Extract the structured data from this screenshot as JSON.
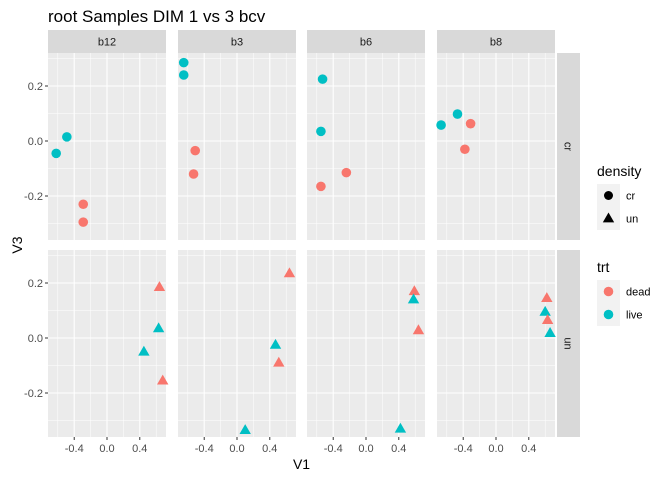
{
  "chart_data": {
    "type": "scatter",
    "title": "root Samples DIM 1 vs 3 bcv",
    "xlabel": "V1",
    "ylabel": "V3",
    "xlim": [
      -0.72,
      0.72
    ],
    "ylim": [
      -0.36,
      0.32
    ],
    "x_ticks": [
      -0.4,
      0.0,
      0.4
    ],
    "x_tick_labels": [
      "-0.4",
      "0.0",
      "0.4"
    ],
    "y_ticks": [
      -0.2,
      0.0,
      0.2
    ],
    "y_tick_labels": [
      "-0.2",
      "0.0",
      "0.2"
    ],
    "facet_columns": [
      "b12",
      "b3",
      "b6",
      "b8"
    ],
    "facet_rows": [
      "cr",
      "un"
    ],
    "grid": true,
    "colors": {
      "dead": "#F8766D",
      "live": "#00BFC4"
    },
    "legends": [
      {
        "title": "density",
        "placement": "right",
        "entries": [
          {
            "label": "cr",
            "shape": "circle"
          },
          {
            "label": "un",
            "shape": "triangle"
          }
        ]
      },
      {
        "title": "trt",
        "placement": "right",
        "entries": [
          {
            "label": "dead",
            "color": "dead"
          },
          {
            "label": "live",
            "color": "live"
          }
        ]
      }
    ],
    "points": [
      {
        "col": "b12",
        "row": "cr",
        "trt": "live",
        "x": -0.49,
        "y": 0.015
      },
      {
        "col": "b12",
        "row": "cr",
        "trt": "live",
        "x": -0.62,
        "y": -0.045
      },
      {
        "col": "b12",
        "row": "cr",
        "trt": "dead",
        "x": -0.29,
        "y": -0.23
      },
      {
        "col": "b12",
        "row": "cr",
        "trt": "dead",
        "x": -0.29,
        "y": -0.295
      },
      {
        "col": "b3",
        "row": "cr",
        "trt": "live",
        "x": -0.65,
        "y": 0.285
      },
      {
        "col": "b3",
        "row": "cr",
        "trt": "live",
        "x": -0.65,
        "y": 0.24
      },
      {
        "col": "b3",
        "row": "cr",
        "trt": "dead",
        "x": -0.51,
        "y": -0.035
      },
      {
        "col": "b3",
        "row": "cr",
        "trt": "dead",
        "x": -0.53,
        "y": -0.12
      },
      {
        "col": "b6",
        "row": "cr",
        "trt": "live",
        "x": -0.53,
        "y": 0.225
      },
      {
        "col": "b6",
        "row": "cr",
        "trt": "live",
        "x": -0.55,
        "y": 0.035
      },
      {
        "col": "b6",
        "row": "cr",
        "trt": "dead",
        "x": -0.24,
        "y": -0.115
      },
      {
        "col": "b6",
        "row": "cr",
        "trt": "dead",
        "x": -0.55,
        "y": -0.165
      },
      {
        "col": "b8",
        "row": "cr",
        "trt": "live",
        "x": -0.67,
        "y": 0.058
      },
      {
        "col": "b8",
        "row": "cr",
        "trt": "live",
        "x": -0.47,
        "y": 0.098
      },
      {
        "col": "b8",
        "row": "cr",
        "trt": "dead",
        "x": -0.31,
        "y": 0.063
      },
      {
        "col": "b8",
        "row": "cr",
        "trt": "dead",
        "x": -0.38,
        "y": -0.03
      },
      {
        "col": "b12",
        "row": "un",
        "trt": "dead",
        "x": 0.64,
        "y": 0.185
      },
      {
        "col": "b12",
        "row": "un",
        "trt": "live",
        "x": 0.63,
        "y": 0.035
      },
      {
        "col": "b12",
        "row": "un",
        "trt": "live",
        "x": 0.45,
        "y": -0.05
      },
      {
        "col": "b12",
        "row": "un",
        "trt": "dead",
        "x": 0.68,
        "y": -0.155
      },
      {
        "col": "b3",
        "row": "un",
        "trt": "dead",
        "x": 0.64,
        "y": 0.235
      },
      {
        "col": "b3",
        "row": "un",
        "trt": "live",
        "x": 0.47,
        "y": -0.025
      },
      {
        "col": "b3",
        "row": "un",
        "trt": "dead",
        "x": 0.51,
        "y": -0.09
      },
      {
        "col": "b3",
        "row": "un",
        "trt": "live",
        "x": 0.1,
        "y": -0.335
      },
      {
        "col": "b6",
        "row": "un",
        "trt": "dead",
        "x": 0.59,
        "y": 0.17
      },
      {
        "col": "b6",
        "row": "un",
        "trt": "live",
        "x": 0.58,
        "y": 0.14
      },
      {
        "col": "b6",
        "row": "un",
        "trt": "dead",
        "x": 0.64,
        "y": 0.028
      },
      {
        "col": "b6",
        "row": "un",
        "trt": "live",
        "x": 0.42,
        "y": -0.33
      },
      {
        "col": "b8",
        "row": "un",
        "trt": "dead",
        "x": 0.62,
        "y": 0.145
      },
      {
        "col": "b8",
        "row": "un",
        "trt": "live",
        "x": 0.6,
        "y": 0.095
      },
      {
        "col": "b8",
        "row": "un",
        "trt": "dead",
        "x": 0.63,
        "y": 0.065
      },
      {
        "col": "b8",
        "row": "un",
        "trt": "live",
        "x": 0.66,
        "y": 0.018
      }
    ]
  }
}
